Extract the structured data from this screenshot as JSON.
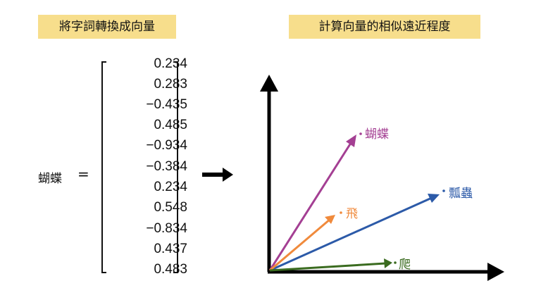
{
  "left_title": "將字詞轉換成向量",
  "right_title": "計算向量的相似遠近程度",
  "word": "蝴蝶",
  "equals": "=",
  "vector": [
    "0.234",
    "0.283",
    "−0.435",
    "0.485",
    "−0.934",
    "−0.384",
    "0.234",
    "0.548",
    "−0.834",
    "0.437",
    "0.483"
  ],
  "arrow_vectors": [
    {
      "label": "蝴蝶",
      "color": "#a43f93"
    },
    {
      "label": "瓢蟲",
      "color": "#2c5aa8"
    },
    {
      "label": "飛",
      "color": "#f08a3c"
    },
    {
      "label": "爬",
      "color": "#3a6b1f"
    }
  ]
}
